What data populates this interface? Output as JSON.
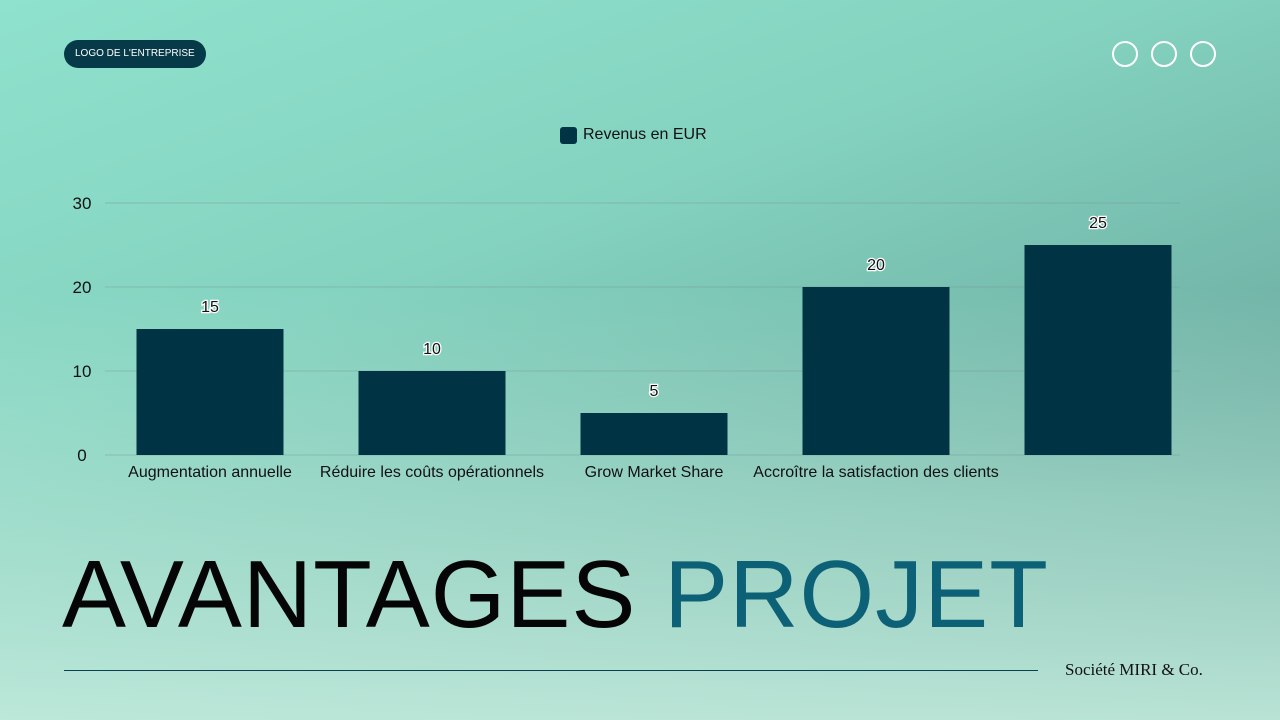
{
  "logo_label": "LOGO DE L'ENTREPRISE",
  "title": {
    "part1": "AVANTAGES",
    "part2": "PROJET"
  },
  "company": "Société MIRI & Co.",
  "colors": {
    "bar": "#003344",
    "title_accent": "#0d6177"
  },
  "chart_data": {
    "type": "bar",
    "categories": [
      "Augmentation annuelle",
      "Réduire les coûts opérationnels",
      "Grow Market Share",
      "Accroître la satisfaction des clients",
      ""
    ],
    "series": [
      {
        "name": "Revenus en EUR",
        "values": [
          15,
          10,
          5,
          20,
          25
        ]
      }
    ],
    "yticks": [
      0,
      10,
      20,
      30
    ],
    "ylim": [
      0,
      30
    ],
    "grid": true,
    "legend": "top-center",
    "data_labels": true
  }
}
